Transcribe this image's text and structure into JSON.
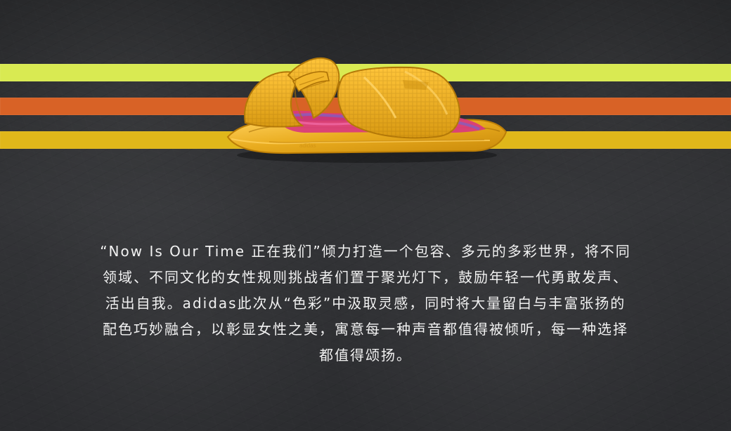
{
  "colors": {
    "background": "#303133",
    "stripe_lime": "#d9ea52",
    "stripe_orange": "#d86226",
    "stripe_yellow": "#e0b71a",
    "sandal_gold": "#e9ac1f",
    "sandal_shadow": "#c98909",
    "sole_pink": "#d93a7d",
    "text": "#f2f2f2"
  },
  "images": {
    "sandal": "adidas-gold-slide-sandal",
    "background": "dark-textured-wall"
  },
  "description_lines": [
    "“Now Is Our Time  正在我们”倾力打造一个包容、多元的多彩世界，将不同",
    "领域、不同文化的女性规则挑战者们置于聚光灯下，鼓励年轻一代勇敢发声、",
    "活出自我。adidas此次从“色彩”中汲取灵感，同时将大量留白与丰富张扬的",
    "配色巧妙融合，以彰显女性之美，寓意每一种声音都值得被倾听，每一种选择",
    "都值得颂扬。"
  ]
}
